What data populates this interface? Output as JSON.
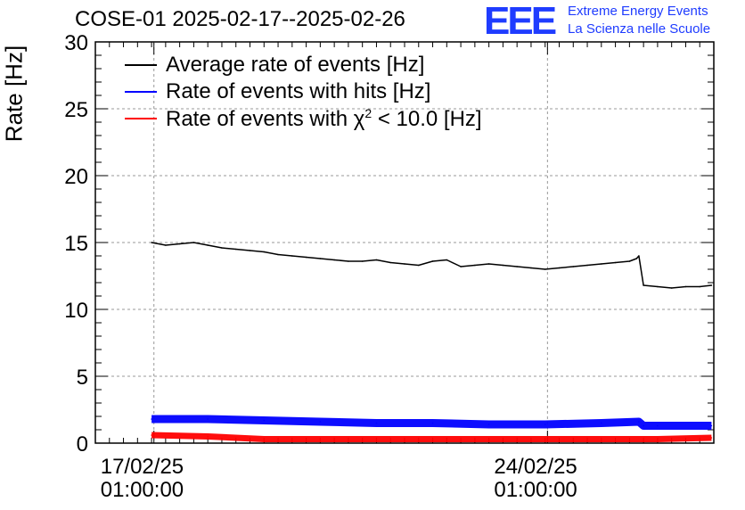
{
  "title": "COSE-01 2025-02-17--2025-02-26",
  "logo": {
    "mark": "EEE",
    "line1": "Extreme Energy Events",
    "line2": "La Scienza nelle Scuole",
    "color": "#1f3cff"
  },
  "chart_data": {
    "type": "line",
    "ylabel": "Rate [Hz]",
    "ylim": [
      0,
      30
    ],
    "yticks": [
      0,
      5,
      10,
      15,
      20,
      25,
      30
    ],
    "xlim": [
      "2025-02-16T00:00",
      "2025-02-27T00:00"
    ],
    "xticks": [
      {
        "date": "2025-02-17T01:00",
        "line1": "17/02/25",
        "line2": "01:00:00"
      },
      {
        "date": "2025-02-24T01:00",
        "line1": "24/02/25",
        "line2": "01:00:00"
      }
    ],
    "grid": true,
    "legend_position": "top-left",
    "series": [
      {
        "name": "Average rate of events [Hz]",
        "color": "#000000",
        "x": [
          "2025-02-17T00:00",
          "2025-02-17T06:00",
          "2025-02-17T12:00",
          "2025-02-17T18:00",
          "2025-02-18T00:00",
          "2025-02-18T06:00",
          "2025-02-18T12:00",
          "2025-02-18T18:00",
          "2025-02-19T00:00",
          "2025-02-19T06:00",
          "2025-02-19T12:00",
          "2025-02-19T18:00",
          "2025-02-20T00:00",
          "2025-02-20T06:00",
          "2025-02-20T12:00",
          "2025-02-20T18:00",
          "2025-02-21T00:00",
          "2025-02-21T06:00",
          "2025-02-21T12:00",
          "2025-02-21T18:00",
          "2025-02-22T00:00",
          "2025-02-22T06:00",
          "2025-02-22T12:00",
          "2025-02-22T18:00",
          "2025-02-23T00:00",
          "2025-02-23T06:00",
          "2025-02-23T12:00",
          "2025-02-23T18:00",
          "2025-02-24T00:00",
          "2025-02-24T06:00",
          "2025-02-24T12:00",
          "2025-02-24T18:00",
          "2025-02-25T00:00",
          "2025-02-25T06:00",
          "2025-02-25T12:00",
          "2025-02-25T15:00",
          "2025-02-25T16:00",
          "2025-02-25T18:00",
          "2025-02-26T00:00",
          "2025-02-26T06:00",
          "2025-02-26T12:00",
          "2025-02-26T18:00",
          "2025-02-26T23:00"
        ],
        "values": [
          15.0,
          14.8,
          14.9,
          15.0,
          14.8,
          14.6,
          14.5,
          14.4,
          14.3,
          14.1,
          14.0,
          13.9,
          13.8,
          13.7,
          13.6,
          13.6,
          13.7,
          13.5,
          13.4,
          13.3,
          13.6,
          13.7,
          13.2,
          13.3,
          13.4,
          13.3,
          13.2,
          13.1,
          13.0,
          13.1,
          13.2,
          13.3,
          13.4,
          13.5,
          13.6,
          13.8,
          14.0,
          11.8,
          11.7,
          11.6,
          11.7,
          11.7,
          11.8
        ]
      },
      {
        "name": "Rate of events with hits [Hz]",
        "color": "#0000ff",
        "x": [
          "2025-02-17T00:00",
          "2025-02-18T00:00",
          "2025-02-19T00:00",
          "2025-02-20T00:00",
          "2025-02-21T00:00",
          "2025-02-22T00:00",
          "2025-02-23T00:00",
          "2025-02-24T00:00",
          "2025-02-25T00:00",
          "2025-02-25T16:00",
          "2025-02-25T18:00",
          "2025-02-26T00:00",
          "2025-02-26T23:00"
        ],
        "values": [
          1.8,
          1.8,
          1.7,
          1.6,
          1.5,
          1.5,
          1.4,
          1.4,
          1.5,
          1.6,
          1.3,
          1.3,
          1.3
        ]
      },
      {
        "name": "Rate of events with χ² < 10.0 [Hz]",
        "color": "#ff0000",
        "x": [
          "2025-02-17T00:00",
          "2025-02-18T00:00",
          "2025-02-19T00:00",
          "2025-02-20T00:00",
          "2025-02-21T00:00",
          "2025-02-22T00:00",
          "2025-02-23T00:00",
          "2025-02-24T00:00",
          "2025-02-25T00:00",
          "2025-02-26T00:00",
          "2025-02-26T23:00"
        ],
        "values": [
          0.6,
          0.5,
          0.3,
          0.3,
          0.3,
          0.3,
          0.3,
          0.3,
          0.3,
          0.3,
          0.4
        ]
      }
    ]
  },
  "legend": {
    "item1": "Average rate of events [Hz]",
    "item2": "Rate of events with hits [Hz]",
    "item3_prefix": "Rate of events with ",
    "item3_chi": "χ",
    "item3_sup": "2",
    "item3_suffix": " < 10.0 [Hz]"
  }
}
